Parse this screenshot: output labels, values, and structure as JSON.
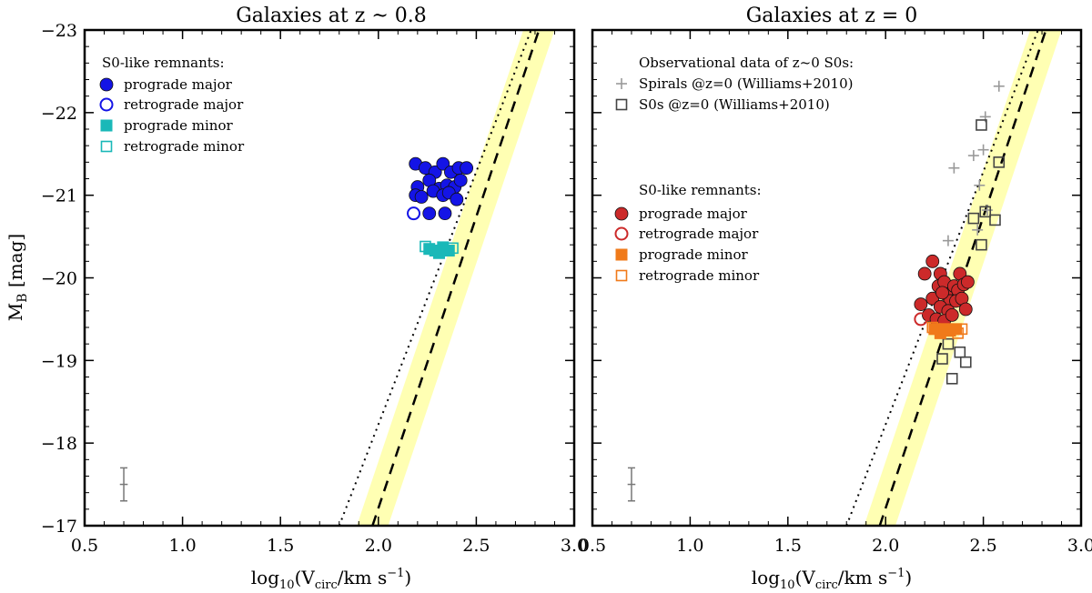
{
  "figure": {
    "ylabel_main": "M",
    "ylabel_sub": "B",
    "ylabel_unit": " [mag]",
    "xlabel_pre": "log",
    "xlabel_sub1": "10",
    "xlabel_mid": "(V",
    "xlabel_sub2": "circ",
    "xlabel_post": "/km s",
    "xlabel_sup": "−1",
    "xlabel_close": ")"
  },
  "chart_data": [
    {
      "type": "scatter",
      "title": "Galaxies at z ~ 0.8",
      "xlim": [
        0.5,
        3.0
      ],
      "ylim": [
        -17,
        -23
      ],
      "xticks": [
        0.5,
        1.0,
        1.5,
        2.0,
        2.5,
        3.0
      ],
      "xtick_labels": [
        "0.5",
        "1.0",
        "1.5",
        "2.0",
        "2.5",
        "3.0"
      ],
      "yticks": [
        -23,
        -22,
        -21,
        -20,
        -19,
        -18,
        -17
      ],
      "ytick_labels": [
        "−23",
        "−22",
        "−21",
        "−20",
        "−19",
        "−18",
        "−17"
      ],
      "tf_relation": {
        "dashed": [
          [
            1.97,
            -17.0
          ],
          [
            2.82,
            -23.0
          ]
        ],
        "dotted": [
          [
            1.8,
            -17.0
          ],
          [
            2.78,
            -23.0
          ]
        ],
        "band_halfwidth_x": 0.08
      },
      "errorbar": {
        "x": 0.7,
        "y": -17.5,
        "xerr": 0.02,
        "yerr": 0.2
      },
      "legend_header": "S0-like remnants:",
      "legend_entries": [
        "prograde major",
        "retrograde major",
        "prograde minor",
        "retrograde minor"
      ],
      "series": [
        {
          "name": "prograde major",
          "marker": "filled-circle",
          "color": "#1414e6",
          "points": [
            [
              2.19,
              -21.38
            ],
            [
              2.24,
              -21.33
            ],
            [
              2.29,
              -21.28
            ],
            [
              2.33,
              -21.38
            ],
            [
              2.37,
              -21.28
            ],
            [
              2.41,
              -21.33
            ],
            [
              2.45,
              -21.33
            ],
            [
              2.2,
              -21.1
            ],
            [
              2.26,
              -21.18
            ],
            [
              2.31,
              -21.08
            ],
            [
              2.35,
              -21.12
            ],
            [
              2.39,
              -21.1
            ],
            [
              2.42,
              -21.18
            ],
            [
              2.19,
              -21.0
            ],
            [
              2.22,
              -20.98
            ],
            [
              2.28,
              -21.05
            ],
            [
              2.33,
              -21.0
            ],
            [
              2.36,
              -21.03
            ],
            [
              2.4,
              -20.95
            ],
            [
              2.26,
              -20.78
            ],
            [
              2.34,
              -20.78
            ]
          ]
        },
        {
          "name": "retrograde major",
          "marker": "open-circle",
          "color": "#1414e6",
          "points": [
            [
              2.18,
              -20.78
            ]
          ]
        },
        {
          "name": "prograde minor",
          "marker": "filled-square",
          "color": "#1ab8b8",
          "points": [
            [
              2.26,
              -20.35
            ],
            [
              2.29,
              -20.33
            ],
            [
              2.33,
              -20.37
            ],
            [
              2.36,
              -20.33
            ],
            [
              2.31,
              -20.3
            ]
          ]
        },
        {
          "name": "retrograde minor",
          "marker": "open-square",
          "color": "#1ab8b8",
          "points": [
            [
              2.24,
              -20.38
            ],
            [
              2.38,
              -20.36
            ]
          ]
        }
      ]
    },
    {
      "type": "scatter",
      "title": "Galaxies at z = 0",
      "xlim": [
        0.5,
        3.0
      ],
      "ylim": [
        -17,
        -23
      ],
      "xticks": [
        0.5,
        1.0,
        1.5,
        2.0,
        2.5,
        3.0
      ],
      "xtick_labels": [
        "0.5",
        "1.0",
        "1.5",
        "2.0",
        "2.5",
        "3.0"
      ],
      "yticks": [
        -23,
        -22,
        -21,
        -20,
        -19,
        -18,
        -17
      ],
      "tf_relation": {
        "dashed": [
          [
            1.97,
            -17.0
          ],
          [
            2.82,
            -23.0
          ]
        ],
        "dotted": [
          [
            1.8,
            -17.0
          ],
          [
            2.78,
            -23.0
          ]
        ],
        "band_halfwidth_x": 0.08
      },
      "errorbar": {
        "x": 0.7,
        "y": -17.5,
        "xerr": 0.02,
        "yerr": 0.2
      },
      "legend_obs_header": "Observational data of z~0 S0s:",
      "legend_obs_entries": [
        "Spirals @z=0 (Williams+2010)",
        "S0s @z=0 (Williams+2010)"
      ],
      "legend_header": "S0-like remnants:",
      "legend_entries": [
        "prograde major",
        "retrograde major",
        "prograde minor",
        "retrograde minor"
      ],
      "series": [
        {
          "name": "Spirals @z=0 (Williams+2010)",
          "marker": "plus",
          "color": "#999999",
          "points": [
            [
              2.58,
              -22.32
            ],
            [
              2.51,
              -21.95
            ],
            [
              2.5,
              -21.55
            ],
            [
              2.45,
              -21.48
            ],
            [
              2.35,
              -21.33
            ],
            [
              2.48,
              -21.12
            ],
            [
              2.52,
              -20.82
            ],
            [
              2.32,
              -20.45
            ],
            [
              2.47,
              -20.58
            ]
          ]
        },
        {
          "name": "S0s @z=0 (Williams+2010)",
          "marker": "open-square",
          "color": "#444444",
          "points": [
            [
              2.49,
              -21.85
            ],
            [
              2.58,
              -21.4
            ],
            [
              2.45,
              -20.72
            ],
            [
              2.51,
              -20.8
            ],
            [
              2.56,
              -20.7
            ],
            [
              2.49,
              -20.4
            ],
            [
              2.3,
              -19.38
            ],
            [
              2.32,
              -19.2
            ],
            [
              2.38,
              -19.1
            ],
            [
              2.29,
              -19.02
            ],
            [
              2.41,
              -18.98
            ],
            [
              2.34,
              -18.78
            ]
          ]
        },
        {
          "name": "prograde major",
          "marker": "filled-circle",
          "color": "#cc2a2a",
          "points": [
            [
              2.2,
              -20.05
            ],
            [
              2.24,
              -20.2
            ],
            [
              2.27,
              -19.9
            ],
            [
              2.28,
              -20.05
            ],
            [
              2.3,
              -19.95
            ],
            [
              2.31,
              -19.8
            ],
            [
              2.33,
              -19.72
            ],
            [
              2.35,
              -19.9
            ],
            [
              2.37,
              -19.85
            ],
            [
              2.38,
              -20.05
            ],
            [
              2.4,
              -19.92
            ],
            [
              2.42,
              -19.95
            ],
            [
              2.24,
              -19.75
            ],
            [
              2.28,
              -19.65
            ],
            [
              2.32,
              -19.6
            ],
            [
              2.36,
              -19.72
            ],
            [
              2.39,
              -19.75
            ],
            [
              2.22,
              -19.55
            ],
            [
              2.26,
              -19.5
            ],
            [
              2.3,
              -19.48
            ],
            [
              2.34,
              -19.55
            ],
            [
              2.18,
              -19.68
            ],
            [
              2.41,
              -19.62
            ],
            [
              2.29,
              -19.82
            ]
          ]
        },
        {
          "name": "retrograde major",
          "marker": "open-circle",
          "color": "#cc2a2a",
          "points": [
            [
              2.18,
              -19.5
            ]
          ]
        },
        {
          "name": "prograde minor",
          "marker": "filled-square",
          "color": "#f07a1a",
          "points": [
            [
              2.25,
              -19.38
            ],
            [
              2.28,
              -19.33
            ],
            [
              2.3,
              -19.38
            ],
            [
              2.33,
              -19.36
            ],
            [
              2.36,
              -19.38
            ]
          ]
        },
        {
          "name": "retrograde minor",
          "marker": "open-square",
          "color": "#f07a1a",
          "points": [
            [
              2.24,
              -19.4
            ],
            [
              2.39,
              -19.38
            ],
            [
              2.37,
              -19.33
            ]
          ]
        }
      ]
    }
  ]
}
